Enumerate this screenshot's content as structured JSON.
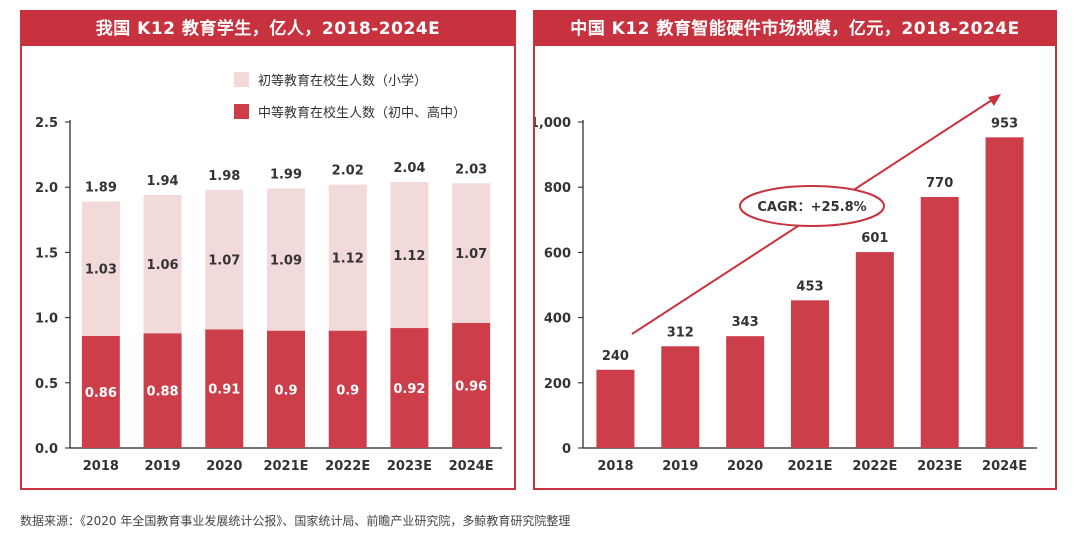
{
  "colors": {
    "accent": "#c8323f",
    "bar_primary": "#cc3e4a",
    "bar_light": "#f2d9da",
    "axis": "#222222",
    "white": "#ffffff"
  },
  "source": "数据来源：《2020 年全国教育事业发展统计公报》、国家统计局、前瞻产业研究院，多鲸教育研究院整理",
  "chart_data": [
    {
      "type": "bar",
      "stacked": true,
      "title": "我国 K12 教育学生，亿人，2018-2024E",
      "categories": [
        "2018",
        "2019",
        "2020",
        "2021E",
        "2022E",
        "2023E",
        "2024E"
      ],
      "series": [
        {
          "name": "中等教育在校生人数（初中、高中）",
          "values": [
            0.86,
            0.88,
            0.91,
            0.9,
            0.9,
            0.92,
            0.96
          ]
        },
        {
          "name": "初等教育在校生人数（小学）",
          "values": [
            1.03,
            1.06,
            1.07,
            1.09,
            1.12,
            1.12,
            1.07
          ]
        }
      ],
      "totals": [
        1.89,
        1.94,
        1.98,
        1.99,
        2.02,
        2.04,
        2.03
      ],
      "ylim": [
        0,
        2.5
      ],
      "yticks": [
        "0.0",
        "0.5",
        "1.0",
        "1.5",
        "2.0",
        "2.5"
      ],
      "legend_position": "top-right"
    },
    {
      "type": "bar",
      "title": "中国 K12 教育智能硬件市场规模，亿元，2018-2024E",
      "categories": [
        "2018",
        "2019",
        "2020",
        "2021E",
        "2022E",
        "2023E",
        "2024E"
      ],
      "values": [
        240,
        312,
        343,
        453,
        601,
        770,
        953
      ],
      "ylim": [
        0,
        1000
      ],
      "yticks": [
        "0",
        "200",
        "400",
        "600",
        "800",
        "1,000"
      ],
      "annotation": "CAGR：+25.8%"
    }
  ]
}
